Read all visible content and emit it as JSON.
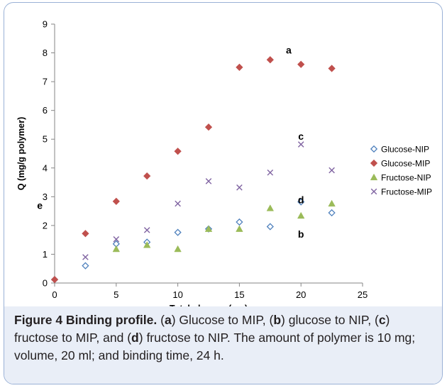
{
  "chart_data": {
    "type": "scatter",
    "xlabel": "Total glucose (mg)",
    "ylabel": "Q (mg/g polymer)",
    "xlim": [
      0,
      25
    ],
    "ylim": [
      0,
      9
    ],
    "xticks": [
      0,
      5,
      10,
      15,
      20,
      25
    ],
    "yticks": [
      0,
      1,
      2,
      3,
      4,
      5,
      6,
      7,
      8,
      9
    ],
    "grid": false,
    "legend_position": "right",
    "series": [
      {
        "name": "Glucose-NIP",
        "marker": "open-diamond",
        "color": "#4f81bd",
        "x": [
          0,
          2.5,
          5,
          7.5,
          10,
          12.5,
          15,
          17.5,
          20,
          22.5
        ],
        "y": [
          0.12,
          0.6,
          1.36,
          1.42,
          1.76,
          1.88,
          2.12,
          1.96,
          2.82,
          2.44
        ]
      },
      {
        "name": "Glucose-MIP",
        "marker": "filled-diamond",
        "color": "#c0504d",
        "x": [
          0,
          2.5,
          5,
          7.5,
          10,
          12.5,
          15,
          17.5,
          20,
          22.5
        ],
        "y": [
          0.12,
          1.72,
          2.84,
          3.72,
          4.58,
          5.42,
          7.5,
          7.76,
          7.6,
          7.46
        ]
      },
      {
        "name": "Fructose-NIP",
        "marker": "triangle",
        "color": "#9bbb59",
        "x": [
          5,
          7.5,
          10,
          12.5,
          15,
          17.5,
          20,
          22.5
        ],
        "y": [
          1.18,
          1.32,
          1.18,
          1.88,
          1.88,
          2.6,
          2.34,
          2.76
        ]
      },
      {
        "name": "Fructose-MIP",
        "marker": "x",
        "color": "#8064a2",
        "x": [
          2.5,
          5,
          7.5,
          10,
          12.5,
          15,
          17.5,
          20,
          22.5
        ],
        "y": [
          0.9,
          1.52,
          1.84,
          2.76,
          3.54,
          3.32,
          3.84,
          4.82,
          3.92
        ]
      }
    ],
    "annotations": [
      {
        "text": "a",
        "x": 19,
        "y": 8.1
      },
      {
        "text": "c",
        "x": 20,
        "y": 5.1
      },
      {
        "text": "d",
        "x": 20,
        "y": 2.9
      },
      {
        "text": "b",
        "x": 20,
        "y": 1.7
      },
      {
        "text": "e",
        "x": -1.2,
        "y": 2.7
      }
    ]
  },
  "caption": {
    "figure_label": "Figure 4 Binding profile.",
    "parts": [
      " (",
      "a",
      ") Glucose to MIP, (",
      "b",
      ") glucose to NIP, (",
      "c",
      ") fructose to MIP, and (",
      "d",
      ") fructose to NIP. The amount of polymer is 10 mg; volume, 20 ml; and binding time, 24 h."
    ]
  }
}
